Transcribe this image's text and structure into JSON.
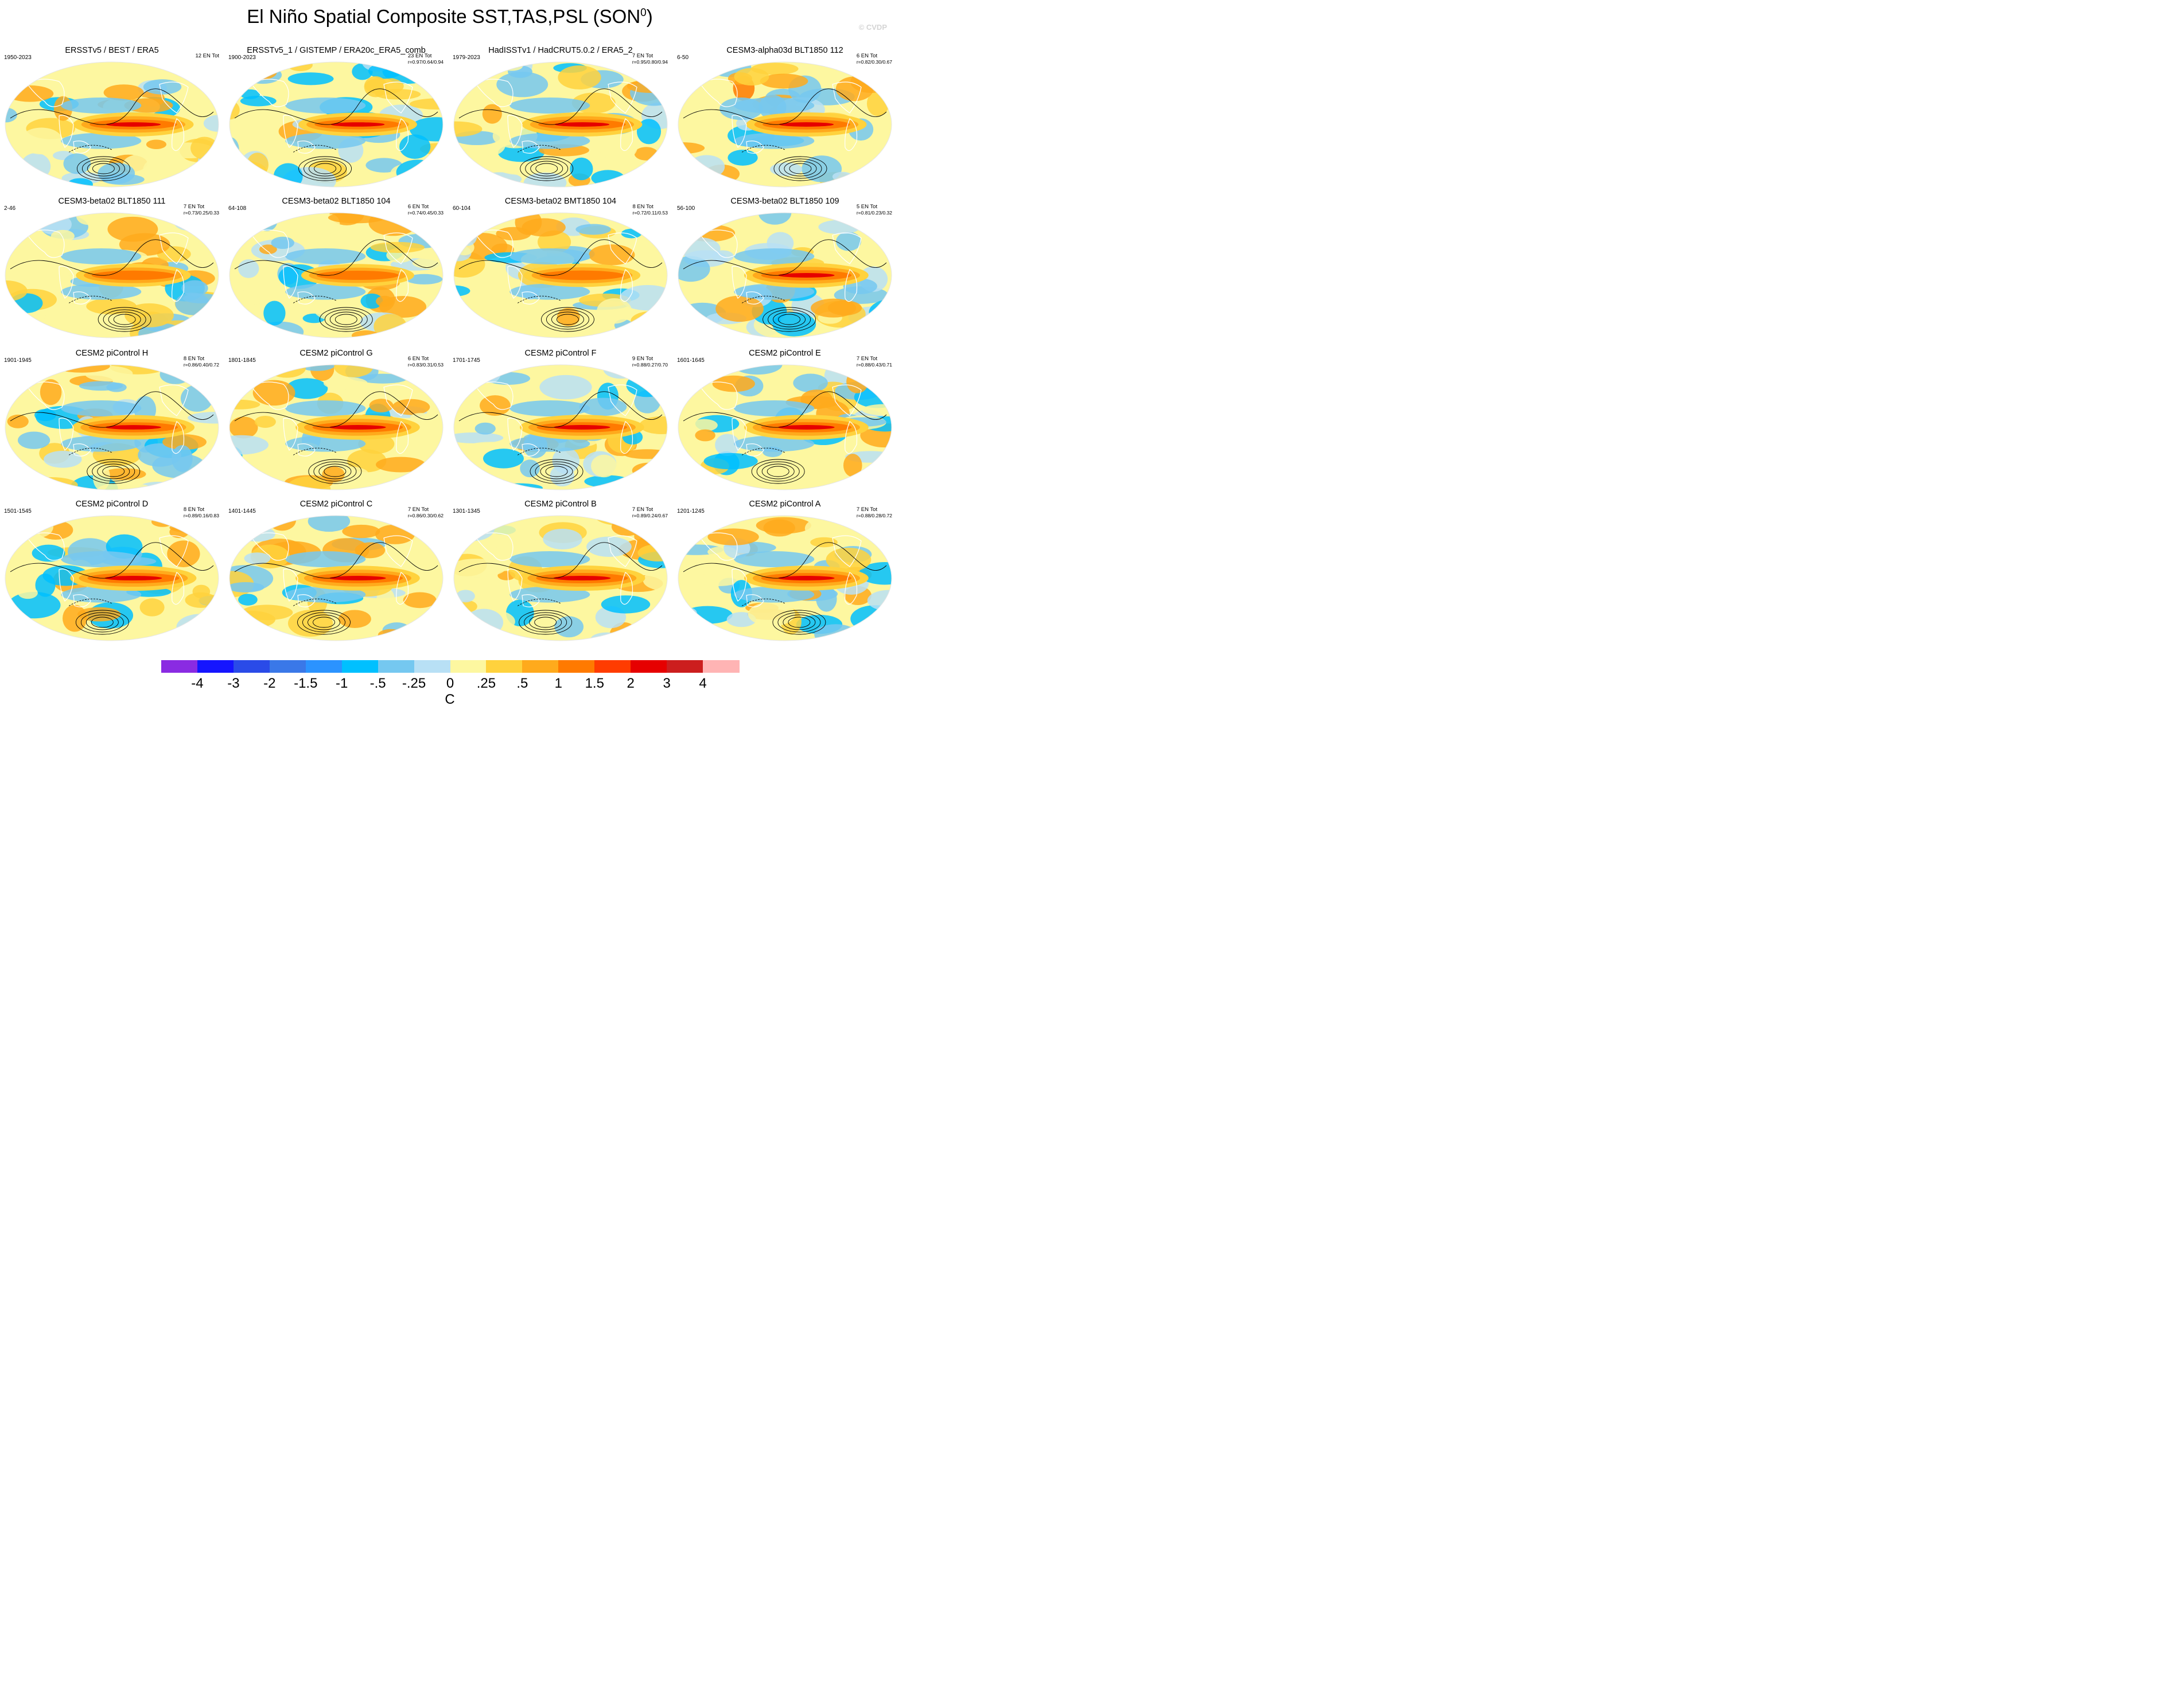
{
  "title_main": "El Niño Spatial Composite SST,TAS,PSL (SON",
  "title_sup": "0",
  "title_end": ")",
  "watermark": "© CVDP",
  "colors": {
    "land_pattern": "#ffffff",
    "contour": "#000000",
    "coast": "#a0a0a0"
  },
  "chart_data": {
    "type": "heatmap",
    "description_units": "C",
    "colorbar": {
      "labels": [
        "-4",
        "-3",
        "-2",
        "-1.5",
        "-1",
        "-.5",
        "-.25",
        "0",
        ".25",
        ".5",
        "1",
        "1.5",
        "2",
        "3",
        "4"
      ],
      "colors": [
        "#8a2be2",
        "#1515ff",
        "#2a4be8",
        "#3a78e8",
        "#2b93ff",
        "#00c0ff",
        "#75c8f0",
        "#b8e0f5",
        "#fdf7a0",
        "#ffd23d",
        "#ffaa1c",
        "#ff7a00",
        "#ff3c00",
        "#e60000",
        "#cc1e1e",
        "#ffb4b4"
      ],
      "unit": "C"
    },
    "panels": [
      {
        "title": "ERSSTv5 / BEST / ERA5",
        "years": "1950-2023",
        "count": "12 EN Tot",
        "corr": "",
        "seed": 1,
        "nino": 0.85,
        "warmNH": 0.1
      },
      {
        "title": "ERSSTv5_1 / GISTEMP / ERA20c_ERA5_comb",
        "years": "1900-2023",
        "count": "23 EN Tot",
        "corr": "r=0.97/0.64/0.94",
        "seed": 2,
        "nino": 0.8,
        "warmNH": 0.0
      },
      {
        "title": "HadISSTv1 / HadCRUT5.0.2 / ERA5_2",
        "years": "1979-2023",
        "count": "7 EN Tot",
        "corr": "r=0.95/0.80/0.94",
        "seed": 3,
        "nino": 0.85,
        "warmNH": 0.0
      },
      {
        "title": "CESM3-alpha03d BLT1850 112",
        "years": "6-50",
        "count": "6 EN Tot",
        "corr": "r=0.82/0.30/0.67",
        "seed": 4,
        "nino": 0.85,
        "warmNH": 0.4
      },
      {
        "title": "CESM3-beta02 BLT1850 111",
        "years": "2-46",
        "count": "7 EN Tot",
        "corr": "r=0.73/0.25/0.33",
        "seed": 5,
        "nino": 0.7,
        "warmNH": 0.3
      },
      {
        "title": "CESM3-beta02 BLT1850 104",
        "years": "64-108",
        "count": "6 EN Tot",
        "corr": "r=0.74/0.45/0.33",
        "seed": 6,
        "nino": 0.65,
        "warmNH": 0.3
      },
      {
        "title": "CESM3-beta02 BMT1850 104",
        "years": "60-104",
        "count": "8 EN Tot",
        "corr": "r=0.72/0.11/0.53",
        "seed": 7,
        "nino": 0.75,
        "warmNH": 0.3
      },
      {
        "title": "CESM3-beta02 BLT1850 109",
        "years": "56-100",
        "count": "5 EN Tot",
        "corr": "r=0.81/0.23/0.32",
        "seed": 8,
        "nino": 0.95,
        "warmNH": 0.1
      },
      {
        "title": "CESM2 piControl H",
        "years": "1901-1945",
        "count": "8 EN Tot",
        "corr": "r=0.86/0.40/0.72",
        "seed": 9,
        "nino": 0.9,
        "warmNH": 0.2
      },
      {
        "title": "CESM2 piControl G",
        "years": "1801-1845",
        "count": "6 EN Tot",
        "corr": "r=0.83/0.31/0.53",
        "seed": 10,
        "nino": 0.95,
        "warmNH": 0.3
      },
      {
        "title": "CESM2 piControl F",
        "years": "1701-1745",
        "count": "9 EN Tot",
        "corr": "r=0.88/0.27/0.70",
        "seed": 11,
        "nino": 0.95,
        "warmNH": 0.3
      },
      {
        "title": "CESM2 piControl E",
        "years": "1601-1645",
        "count": "7 EN Tot",
        "corr": "r=0.88/0.43/0.71",
        "seed": 12,
        "nino": 0.95,
        "warmNH": 0.3
      },
      {
        "title": "CESM2 piControl D",
        "years": "1501-1545",
        "count": "8 EN Tot",
        "corr": "r=0.89/0.16/0.83",
        "seed": 13,
        "nino": 1.0,
        "warmNH": 0.3
      },
      {
        "title": "CESM2 piControl C",
        "years": "1401-1445",
        "count": "7 EN Tot",
        "corr": "r=0.86/0.30/0.62",
        "seed": 14,
        "nino": 0.95,
        "warmNH": 0.3
      },
      {
        "title": "CESM2 piControl B",
        "years": "1301-1345",
        "count": "7 EN Tot",
        "corr": "r=0.89/0.24/0.67",
        "seed": 15,
        "nino": 1.0,
        "warmNH": 0.3
      },
      {
        "title": "CESM2 piControl A",
        "years": "1201-1245",
        "count": "7 EN Tot",
        "corr": "r=0.88/0.28/0.72",
        "seed": 16,
        "nino": 0.95,
        "warmNH": 0.3
      }
    ]
  }
}
